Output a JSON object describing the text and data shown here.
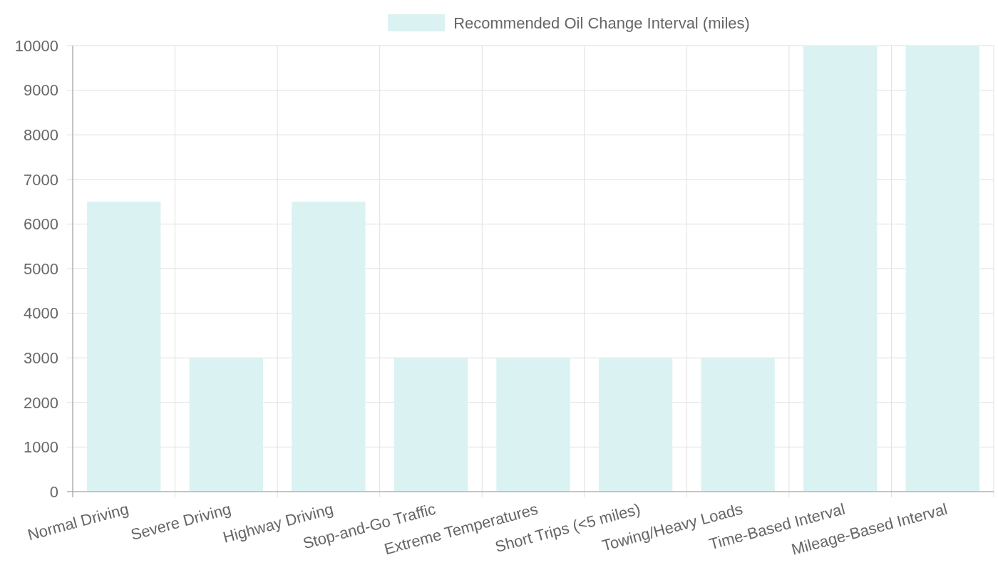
{
  "chart_data": {
    "type": "bar",
    "categories": [
      "Normal Driving",
      "Severe Driving",
      "Highway Driving",
      "Stop-and-Go Traffic",
      "Extreme Temperatures",
      "Short Trips (<5 miles)",
      "Towing/Heavy Loads",
      "Time-Based Interval",
      "Mileage-Based Interval"
    ],
    "series": [
      {
        "name": "Recommended Oil Change Interval (miles)",
        "color": "#dbf2f2",
        "values": [
          6500,
          3000,
          6500,
          3000,
          3000,
          3000,
          3000,
          10000,
          10000
        ]
      }
    ],
    "ylim": [
      0,
      10000
    ],
    "yticks": [
      0,
      1000,
      2000,
      3000,
      4000,
      5000,
      6000,
      7000,
      8000,
      9000,
      10000
    ],
    "grid": true,
    "legend": "top"
  }
}
